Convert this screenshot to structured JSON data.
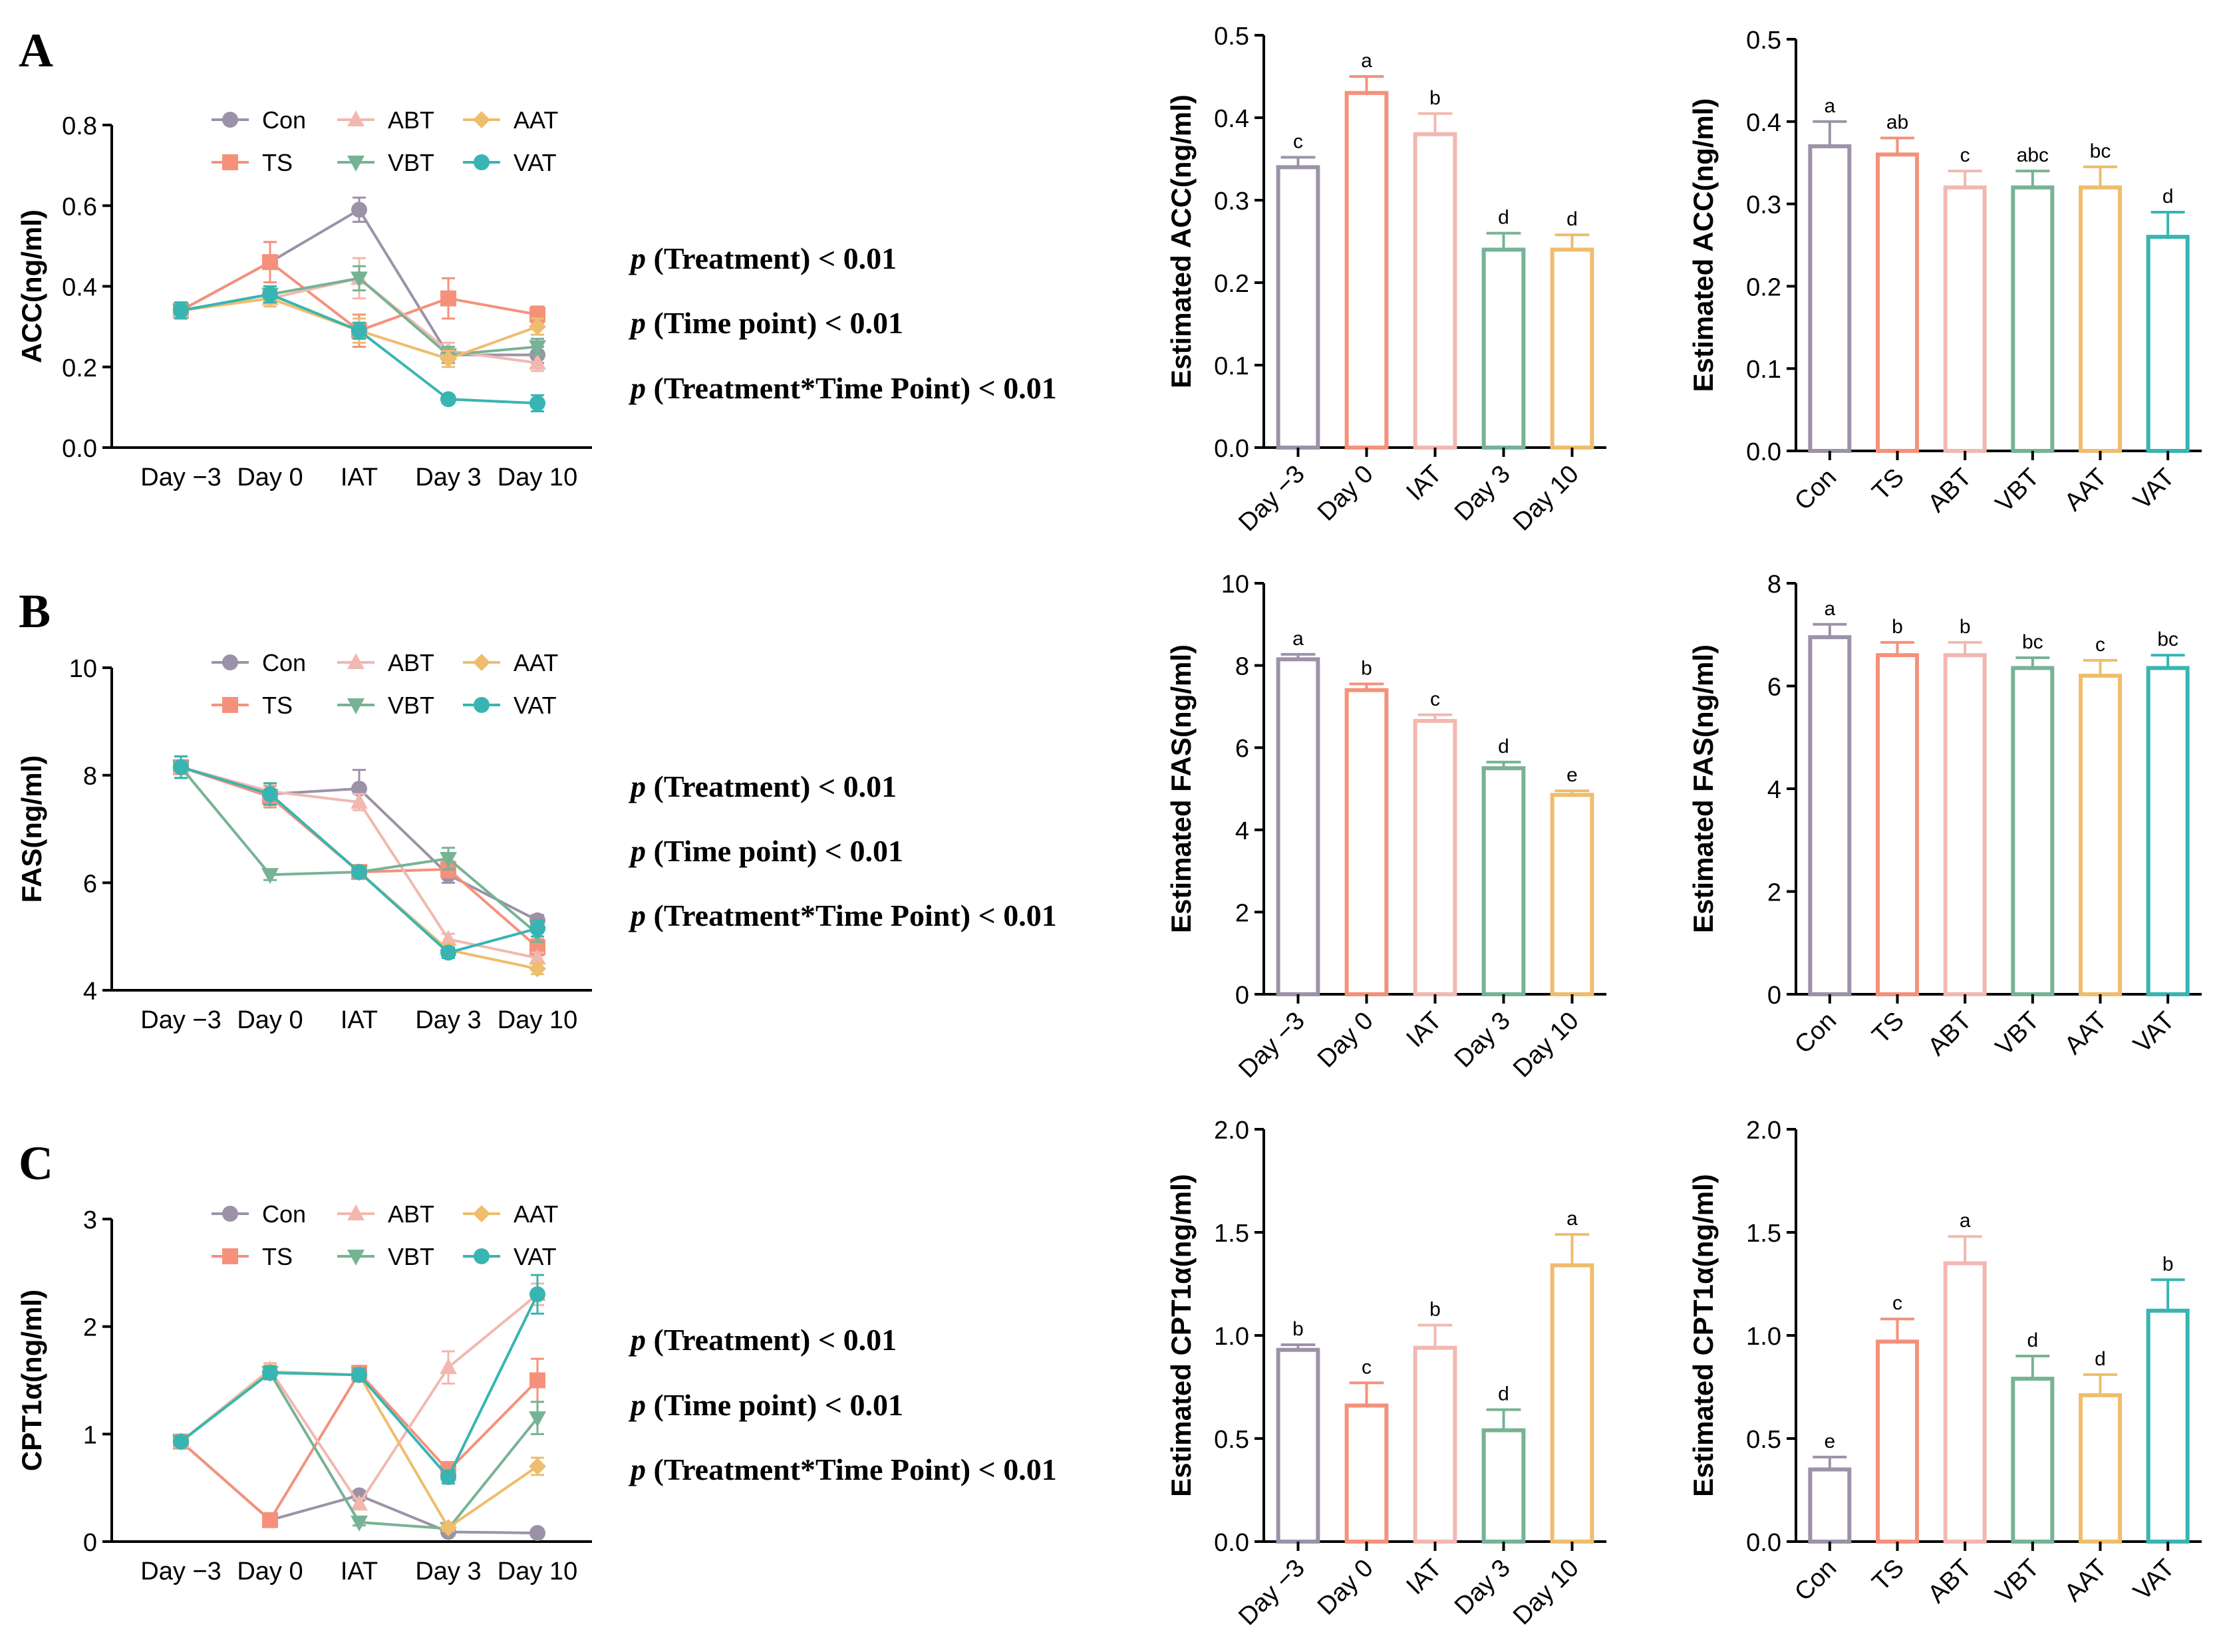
{
  "groups": [
    "Con",
    "TS",
    "ABT",
    "VBT",
    "AAT",
    "VAT"
  ],
  "times": [
    "Day −3",
    "Day 0",
    "IAT",
    "Day 3",
    "Day 10"
  ],
  "colors": {
    "Con": "#9c92a8",
    "TS": "#f5917b",
    "ABT": "#f2b8b0",
    "VBT": "#76b394",
    "AAT": "#eebd6d",
    "VAT": "#38b5b2"
  },
  "time_colors": [
    "#9c92a8",
    "#f5917b",
    "#f2b8b0",
    "#76b394",
    "#eebd6d"
  ],
  "panels": [
    {
      "letter": "A",
      "stats": [
        {
          "p": "p",
          "label": " (Treatment) < 0.01"
        },
        {
          "p": "p",
          "label": " (Time point) < 0.01"
        },
        {
          "p": "p",
          "label": " (Treatment*Time Point) < 0.01"
        }
      ]
    },
    {
      "letter": "B",
      "stats": [
        {
          "p": "p",
          "label": " (Treatment) < 0.01"
        },
        {
          "p": "p",
          "label": " (Time point) < 0.01"
        },
        {
          "p": "p",
          "label": " (Treatment*Time Point) < 0.01"
        }
      ]
    },
    {
      "letter": "C",
      "stats": [
        {
          "p": "p",
          "label": " (Treatment) < 0.01"
        },
        {
          "p": "p",
          "label": " (Time point) < 0.01"
        },
        {
          "p": "p",
          "label": " (Treatment*Time Point) < 0.01"
        }
      ]
    }
  ],
  "chart_data": [
    {
      "id": "A-line",
      "type": "line",
      "ylabel": "ACC(ng/ml)",
      "ylim": [
        0,
        0.8
      ],
      "yticks": [
        "0.0",
        "0.2",
        "0.4",
        "0.6",
        "0.8"
      ],
      "categories": [
        "Day −3",
        "Day 0",
        "IAT",
        "Day 3",
        "Day 10"
      ],
      "series": [
        {
          "name": "Con",
          "values": [
            0.34,
            0.46,
            0.59,
            0.23,
            0.23
          ],
          "errors": [
            0.02,
            0.05,
            0.03,
            0.02,
            0.02
          ]
        },
        {
          "name": "TS",
          "values": [
            0.34,
            0.46,
            0.29,
            0.37,
            0.33
          ],
          "errors": [
            0.02,
            0.05,
            0.04,
            0.05,
            0.02
          ]
        },
        {
          "name": "ABT",
          "values": [
            0.34,
            0.37,
            0.42,
            0.24,
            0.21
          ],
          "errors": [
            0.02,
            0.02,
            0.05,
            0.02,
            0.02
          ]
        },
        {
          "name": "VBT",
          "values": [
            0.34,
            0.38,
            0.42,
            0.23,
            0.25
          ],
          "errors": [
            0.02,
            0.02,
            0.03,
            0.02,
            0.02
          ]
        },
        {
          "name": "AAT",
          "values": [
            0.34,
            0.37,
            0.29,
            0.22,
            0.3
          ],
          "errors": [
            0.02,
            0.02,
            0.03,
            0.02,
            0.02
          ]
        },
        {
          "name": "VAT",
          "values": [
            0.34,
            0.38,
            0.29,
            0.12,
            0.11
          ],
          "errors": [
            0.02,
            0.02,
            0.02,
            0.01,
            0.02
          ]
        }
      ]
    },
    {
      "id": "A-time",
      "type": "bar",
      "ylabel": "Estimated ACC(ng/ml)",
      "ylim": [
        0,
        0.5
      ],
      "yticks": [
        "0.0",
        "0.1",
        "0.2",
        "0.3",
        "0.4",
        "0.5"
      ],
      "categories": [
        "Day −3",
        "Day 0",
        "IAT",
        "Day 3",
        "Day 10"
      ],
      "values": [
        0.34,
        0.43,
        0.38,
        0.24,
        0.24
      ],
      "errors": [
        0.012,
        0.02,
        0.025,
        0.02,
        0.018
      ],
      "letters": [
        "c",
        "a",
        "b",
        "d",
        "d"
      ]
    },
    {
      "id": "A-trt",
      "type": "bar",
      "ylabel": "Estimated ACC(ng/ml)",
      "ylim": [
        0,
        0.5
      ],
      "yticks": [
        "0.0",
        "0.1",
        "0.2",
        "0.3",
        "0.4",
        "0.5"
      ],
      "categories": [
        "Con",
        "TS",
        "ABT",
        "VBT",
        "AAT",
        "VAT"
      ],
      "values": [
        0.37,
        0.36,
        0.32,
        0.32,
        0.32,
        0.26
      ],
      "errors": [
        0.03,
        0.02,
        0.02,
        0.02,
        0.025,
        0.03
      ],
      "letters": [
        "a",
        "ab",
        "c",
        "abc",
        "bc",
        "d"
      ]
    },
    {
      "id": "B-line",
      "type": "line",
      "ylabel": "FAS(ng/ml)",
      "ylim": [
        4,
        10
      ],
      "yticks": [
        "4",
        "6",
        "8",
        "10"
      ],
      "categories": [
        "Day −3",
        "Day 0",
        "IAT",
        "Day 3",
        "Day 10"
      ],
      "series": [
        {
          "name": "Con",
          "values": [
            8.15,
            7.65,
            7.75,
            6.15,
            5.3
          ],
          "errors": [
            0.2,
            0.2,
            0.35,
            0.15,
            0.1
          ]
        },
        {
          "name": "TS",
          "values": [
            8.15,
            7.6,
            6.2,
            6.25,
            4.8
          ],
          "errors": [
            0.2,
            0.2,
            0.1,
            0.15,
            0.15
          ]
        },
        {
          "name": "ABT",
          "values": [
            8.15,
            7.7,
            7.5,
            4.95,
            4.6
          ],
          "errors": [
            0.2,
            0.15,
            0.15,
            0.1,
            0.1
          ]
        },
        {
          "name": "VBT",
          "values": [
            8.15,
            6.15,
            6.2,
            6.45,
            5.05
          ],
          "errors": [
            0.2,
            0.1,
            0.1,
            0.2,
            0.15
          ]
        },
        {
          "name": "AAT",
          "values": [
            8.15,
            7.65,
            6.2,
            4.75,
            4.4
          ],
          "errors": [
            0.2,
            0.2,
            0.1,
            0.1,
            0.1
          ]
        },
        {
          "name": "VAT",
          "values": [
            8.15,
            7.65,
            6.2,
            4.7,
            5.15
          ],
          "errors": [
            0.2,
            0.2,
            0.1,
            0.1,
            0.15
          ]
        }
      ]
    },
    {
      "id": "B-time",
      "type": "bar",
      "ylabel": "Estimated FAS(ng/ml)",
      "ylim": [
        0,
        10
      ],
      "yticks": [
        "0",
        "2",
        "4",
        "6",
        "8",
        "10"
      ],
      "categories": [
        "Day −3",
        "Day 0",
        "IAT",
        "Day 3",
        "Day 10"
      ],
      "values": [
        8.15,
        7.4,
        6.65,
        5.5,
        4.85
      ],
      "errors": [
        0.12,
        0.15,
        0.15,
        0.15,
        0.1
      ],
      "letters": [
        "a",
        "b",
        "c",
        "d",
        "e"
      ]
    },
    {
      "id": "B-trt",
      "type": "bar",
      "ylabel": "Estimated FAS(ng/ml)",
      "ylim": [
        0,
        8
      ],
      "yticks": [
        "0",
        "2",
        "4",
        "6",
        "8"
      ],
      "categories": [
        "Con",
        "TS",
        "ABT",
        "VBT",
        "AAT",
        "VAT"
      ],
      "values": [
        6.95,
        6.6,
        6.6,
        6.35,
        6.2,
        6.35
      ],
      "errors": [
        0.25,
        0.25,
        0.25,
        0.2,
        0.3,
        0.25
      ],
      "letters": [
        "a",
        "b",
        "b",
        "bc",
        "c",
        "bc"
      ]
    },
    {
      "id": "C-line",
      "type": "line",
      "ylabel": "CPT1α(ng/ml)",
      "ylim": [
        0,
        3
      ],
      "yticks": [
        "0",
        "1",
        "2",
        "3"
      ],
      "categories": [
        "Day −3",
        "Day 0",
        "IAT",
        "Day 3",
        "Day 10"
      ],
      "series": [
        {
          "name": "Con",
          "values": [
            0.93,
            0.2,
            0.43,
            0.09,
            0.08
          ],
          "errors": [
            0.04,
            0.02,
            0.04,
            0.02,
            0.01
          ]
        },
        {
          "name": "TS",
          "values": [
            0.93,
            0.2,
            1.57,
            0.66,
            1.5
          ],
          "errors": [
            0.04,
            0.02,
            0.06,
            0.08,
            0.2
          ]
        },
        {
          "name": "ABT",
          "values": [
            0.93,
            1.6,
            0.35,
            1.62,
            2.3
          ],
          "errors": [
            0.04,
            0.06,
            0.05,
            0.15,
            0.1
          ]
        },
        {
          "name": "VBT",
          "values": [
            0.93,
            1.57,
            0.18,
            0.12,
            1.15
          ],
          "errors": [
            0.04,
            0.06,
            0.03,
            0.02,
            0.15
          ]
        },
        {
          "name": "AAT",
          "values": [
            0.93,
            1.58,
            1.55,
            0.13,
            0.7
          ],
          "errors": [
            0.04,
            0.06,
            0.06,
            0.03,
            0.08
          ]
        },
        {
          "name": "VAT",
          "values": [
            0.93,
            1.57,
            1.55,
            0.6,
            2.3
          ],
          "errors": [
            0.04,
            0.06,
            0.06,
            0.06,
            0.18
          ]
        }
      ]
    },
    {
      "id": "C-time",
      "type": "bar",
      "ylabel": "Estimated CPT1α(ng/ml)",
      "ylim": [
        0,
        2
      ],
      "yticks": [
        "0.0",
        "0.5",
        "1.0",
        "1.5",
        "2.0"
      ],
      "categories": [
        "Day −3",
        "Day 0",
        "IAT",
        "Day 3",
        "Day 10"
      ],
      "values": [
        0.93,
        0.66,
        0.94,
        0.54,
        1.34
      ],
      "errors": [
        0.025,
        0.11,
        0.11,
        0.1,
        0.15
      ],
      "letters": [
        "b",
        "c",
        "b",
        "d",
        "a"
      ]
    },
    {
      "id": "C-trt",
      "type": "bar",
      "ylabel": "Estimated CPT1α(ng/ml)",
      "ylim": [
        0,
        2
      ],
      "yticks": [
        "0.0",
        "0.5",
        "1.0",
        "1.5",
        "2.0"
      ],
      "categories": [
        "Con",
        "TS",
        "ABT",
        "VBT",
        "AAT",
        "VAT"
      ],
      "values": [
        0.35,
        0.97,
        1.35,
        0.79,
        0.71,
        1.12
      ],
      "errors": [
        0.06,
        0.11,
        0.13,
        0.11,
        0.1,
        0.15
      ],
      "letters": [
        "e",
        "c",
        "a",
        "d",
        "d",
        "b"
      ]
    }
  ]
}
